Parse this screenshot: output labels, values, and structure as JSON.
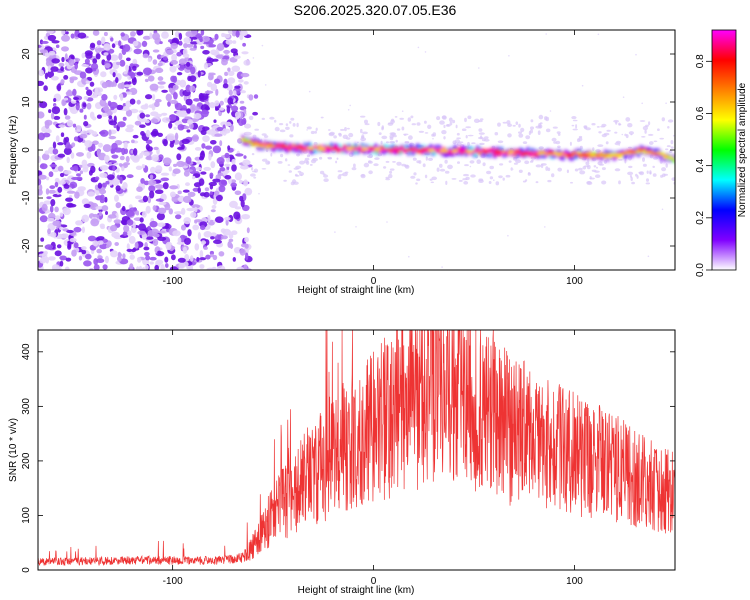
{
  "title": "S206.2025.320.07.05.E36",
  "chart_data": [
    {
      "type": "heatmap",
      "title": "S206.2025.320.07.05.E36",
      "xlabel": "Height of straight line (km)",
      "ylabel": "Frequency (Hz)",
      "xlim": [
        -167,
        150
      ],
      "ylim": [
        -25,
        25
      ],
      "xticks": [
        -100,
        0,
        100
      ],
      "yticks": [
        -20,
        -10,
        0,
        10,
        20
      ],
      "grid": false,
      "noise_region_x": [
        -167,
        -62
      ],
      "signal_band": [
        {
          "x": -65,
          "freq": 2,
          "amp": 0.45
        },
        {
          "x": -55,
          "freq": 1,
          "amp": 0.55
        },
        {
          "x": -40,
          "freq": 0.5,
          "amp": 0.7
        },
        {
          "x": -20,
          "freq": 0.3,
          "amp": 0.85
        },
        {
          "x": 0,
          "freq": 0.2,
          "amp": 0.9
        },
        {
          "x": 25,
          "freq": 0,
          "amp": 0.8
        },
        {
          "x": 50,
          "freq": -0.3,
          "amp": 0.75
        },
        {
          "x": 75,
          "freq": -0.6,
          "amp": 0.7
        },
        {
          "x": 100,
          "freq": -1,
          "amp": 0.6
        },
        {
          "x": 120,
          "freq": -1.2,
          "amp": 0.45
        },
        {
          "x": 135,
          "freq": 0,
          "amp": 0.55
        },
        {
          "x": 150,
          "freq": -2,
          "amp": 0.4
        }
      ],
      "colorbar": {
        "label": "Normalized spectral amplitude",
        "range": [
          0,
          0.92
        ],
        "ticks": [
          0.0,
          0.2,
          0.4,
          0.6,
          0.8
        ],
        "tick_labels": [
          "0.0",
          "0.2",
          "0.4",
          "0.6",
          "0.8"
        ],
        "colormap": [
          "#ffffff",
          "#8000ff",
          "#0000ff",
          "#00ffff",
          "#00ff00",
          "#ffff00",
          "#ff8000",
          "#ff0000",
          "#ff00ff"
        ]
      }
    },
    {
      "type": "line",
      "xlabel": "Height of straight line (km)",
      "ylabel": "SNR (10 * v/v)",
      "xlim": [
        -167,
        150
      ],
      "ylim": [
        0,
        440
      ],
      "xticks": [
        -100,
        0,
        100
      ],
      "yticks": [
        0,
        100,
        200,
        300,
        400
      ],
      "color": "#ee3333",
      "grid": false,
      "series": [
        {
          "x": [
            -167,
            -150,
            -130,
            -110,
            -90,
            -75,
            -65,
            -58,
            -52,
            -46,
            -40,
            -34,
            -28,
            -22,
            -16,
            -10,
            -4,
            2,
            10,
            20,
            30,
            40,
            50,
            60,
            70,
            80,
            90,
            100,
            110,
            120,
            130,
            140,
            150
          ],
          "values": [
            15,
            16,
            17,
            18,
            17,
            18,
            22,
            55,
            90,
            120,
            140,
            165,
            185,
            205,
            220,
            235,
            250,
            265,
            295,
            315,
            325,
            330,
            315,
            285,
            255,
            240,
            225,
            210,
            200,
            185,
            170,
            155,
            140
          ]
        }
      ]
    }
  ]
}
